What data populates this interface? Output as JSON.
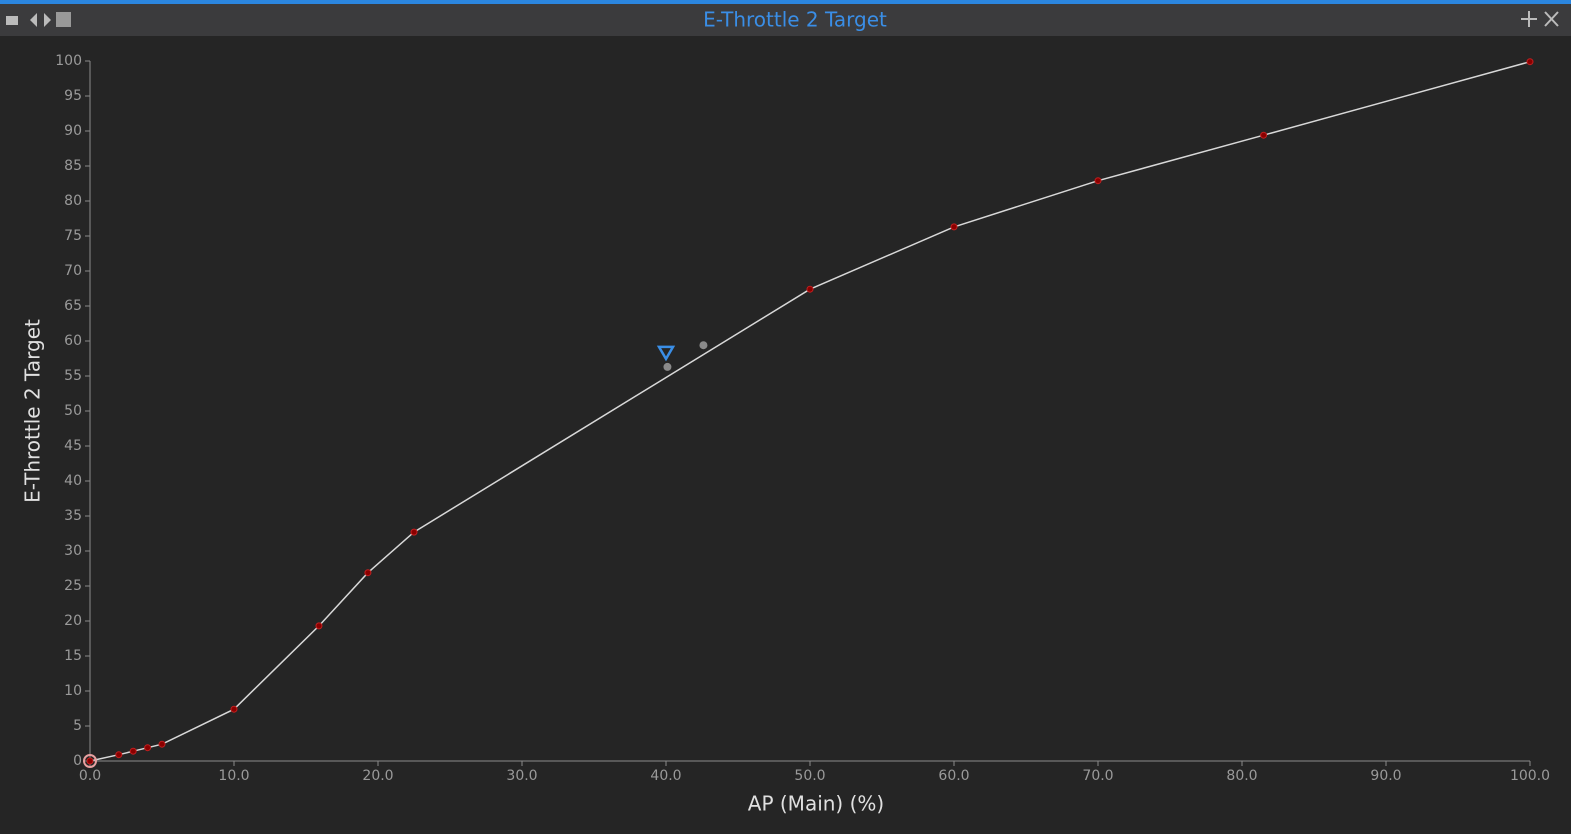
{
  "chart_data": {
    "type": "line",
    "title": "E-Throttle 2 Target",
    "x_label": "AP (Main) (%)",
    "y_label": "E-Throttle 2 Target",
    "x": [
      0,
      2,
      3,
      4,
      5,
      10,
      15.9,
      19.3,
      22.5,
      50,
      60,
      70,
      81.5,
      100
    ],
    "values": [
      0,
      0.9,
      1.4,
      1.9,
      2.4,
      7.4,
      19.3,
      26.9,
      32.7,
      67.4,
      76.3,
      82.9,
      89.4,
      99.9
    ],
    "color": "#d8d8d8",
    "marker_color": "#8b0000",
    "highlight_points": {
      "x": [
        40.1,
        42.6
      ],
      "values": [
        56.3,
        59.4
      ],
      "color": "#8a8a8a"
    },
    "cursor_x": 40,
    "cursor_color": "#3a8ee6",
    "xlim": [
      0,
      100
    ],
    "ylim": [
      0,
      100
    ],
    "xticks": [
      {
        "value": 0,
        "label": "0.0"
      },
      {
        "value": 10,
        "label": "10.0"
      },
      {
        "value": 20,
        "label": "20.0"
      },
      {
        "value": 30,
        "label": "30.0"
      },
      {
        "value": 40,
        "label": "40.0"
      },
      {
        "value": 50,
        "label": "50.0"
      },
      {
        "value": 60,
        "label": "60.0"
      },
      {
        "value": 70,
        "label": "70.0"
      },
      {
        "value": 80,
        "label": "80.0"
      },
      {
        "value": 90,
        "label": "90.0"
      },
      {
        "value": 100,
        "label": "100.0"
      }
    ],
    "yticks": [
      0,
      5,
      10,
      15,
      20,
      25,
      30,
      35,
      40,
      45,
      50,
      55,
      60,
      65,
      70,
      75,
      80,
      85,
      90,
      95,
      100
    ],
    "grid": false
  }
}
